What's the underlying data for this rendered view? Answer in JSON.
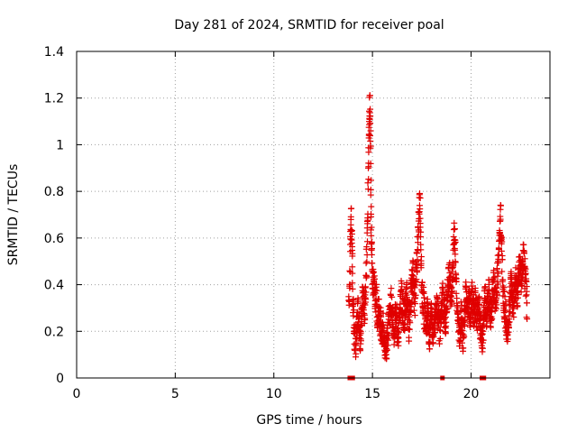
{
  "chart_data": {
    "type": "scatter",
    "title": "Day 281 of 2024, SRMTID for receiver poal",
    "xlabel": "GPS time / hours",
    "ylabel": "SRMTID / TECUs",
    "xlim": [
      0,
      24
    ],
    "ylim": [
      0,
      1.4
    ],
    "xticks": [
      0,
      5,
      10,
      15,
      20
    ],
    "xtick_labels": [
      "0",
      "5",
      "10",
      "15",
      "20"
    ],
    "yticks": [
      0,
      0.2,
      0.4,
      0.6,
      0.8,
      1.0,
      1.2,
      1.4
    ],
    "ytick_labels": [
      "0",
      "0.2",
      "0.4",
      "0.6",
      "0.8",
      "1",
      "1.2",
      "1.4"
    ],
    "grid": true,
    "marker": "plus",
    "color": "#e00000",
    "series": [
      {
        "name": "SRMTID",
        "trace": [
          [
            13.8,
            0.27
          ],
          [
            13.85,
            0.45
          ],
          [
            13.9,
            0.6
          ],
          [
            13.93,
            0.7
          ],
          [
            13.97,
            0.55
          ],
          [
            14.0,
            0.35
          ],
          [
            14.05,
            0.25
          ],
          [
            14.1,
            0.18
          ],
          [
            14.15,
            0.14
          ],
          [
            14.2,
            0.2
          ],
          [
            14.25,
            0.3
          ],
          [
            14.3,
            0.26
          ],
          [
            14.35,
            0.2
          ],
          [
            14.4,
            0.16
          ],
          [
            14.45,
            0.28
          ],
          [
            14.5,
            0.38
          ],
          [
            14.55,
            0.32
          ],
          [
            14.6,
            0.27
          ],
          [
            14.65,
            0.4
          ],
          [
            14.7,
            0.5
          ],
          [
            14.75,
            0.7
          ],
          [
            14.8,
            0.88
          ],
          [
            14.83,
            1.05
          ],
          [
            14.86,
            1.21
          ],
          [
            14.9,
            1.0
          ],
          [
            14.93,
            0.7
          ],
          [
            14.96,
            0.55
          ],
          [
            15.0,
            0.45
          ],
          [
            15.05,
            0.38
          ],
          [
            15.1,
            0.42
          ],
          [
            15.15,
            0.3
          ],
          [
            15.2,
            0.35
          ],
          [
            15.25,
            0.25
          ],
          [
            15.3,
            0.3
          ],
          [
            15.35,
            0.22
          ],
          [
            15.4,
            0.26
          ],
          [
            15.45,
            0.2
          ],
          [
            15.5,
            0.17
          ],
          [
            15.55,
            0.22
          ],
          [
            15.6,
            0.15
          ],
          [
            15.65,
            0.12
          ],
          [
            15.7,
            0.1
          ],
          [
            15.75,
            0.16
          ],
          [
            15.8,
            0.22
          ],
          [
            15.85,
            0.3
          ],
          [
            15.9,
            0.26
          ],
          [
            15.95,
            0.34
          ],
          [
            16.0,
            0.28
          ],
          [
            16.05,
            0.22
          ],
          [
            16.1,
            0.2
          ],
          [
            16.15,
            0.26
          ],
          [
            16.2,
            0.3
          ],
          [
            16.25,
            0.22
          ],
          [
            16.3,
            0.18
          ],
          [
            16.35,
            0.24
          ],
          [
            16.4,
            0.3
          ],
          [
            16.45,
            0.36
          ],
          [
            16.5,
            0.33
          ],
          [
            16.55,
            0.27
          ],
          [
            16.6,
            0.25
          ],
          [
            16.65,
            0.3
          ],
          [
            16.7,
            0.36
          ],
          [
            16.75,
            0.32
          ],
          [
            16.8,
            0.28
          ],
          [
            16.85,
            0.22
          ],
          [
            16.9,
            0.28
          ],
          [
            16.95,
            0.35
          ],
          [
            17.0,
            0.4
          ],
          [
            17.05,
            0.45
          ],
          [
            17.1,
            0.38
          ],
          [
            17.15,
            0.32
          ],
          [
            17.2,
            0.42
          ],
          [
            17.25,
            0.5
          ],
          [
            17.3,
            0.58
          ],
          [
            17.35,
            0.68
          ],
          [
            17.4,
            0.8
          ],
          [
            17.45,
            0.6
          ],
          [
            17.5,
            0.42
          ],
          [
            17.55,
            0.35
          ],
          [
            17.6,
            0.3
          ],
          [
            17.65,
            0.26
          ],
          [
            17.7,
            0.2
          ],
          [
            17.75,
            0.24
          ],
          [
            17.8,
            0.3
          ],
          [
            17.85,
            0.22
          ],
          [
            17.9,
            0.18
          ],
          [
            17.95,
            0.26
          ],
          [
            18.0,
            0.28
          ],
          [
            18.05,
            0.2
          ],
          [
            18.1,
            0.16
          ],
          [
            18.15,
            0.22
          ],
          [
            18.2,
            0.26
          ],
          [
            18.25,
            0.32
          ],
          [
            18.3,
            0.3
          ],
          [
            18.35,
            0.25
          ],
          [
            18.4,
            0.2
          ],
          [
            18.45,
            0.24
          ],
          [
            18.5,
            0.28
          ],
          [
            18.55,
            0.34
          ],
          [
            18.6,
            0.32
          ],
          [
            18.65,
            0.28
          ],
          [
            18.7,
            0.24
          ],
          [
            18.75,
            0.3
          ],
          [
            18.8,
            0.36
          ],
          [
            18.85,
            0.42
          ],
          [
            18.9,
            0.45
          ],
          [
            18.95,
            0.38
          ],
          [
            19.0,
            0.35
          ],
          [
            19.05,
            0.42
          ],
          [
            19.1,
            0.5
          ],
          [
            19.15,
            0.62
          ],
          [
            19.2,
            0.55
          ],
          [
            19.25,
            0.4
          ],
          [
            19.3,
            0.3
          ],
          [
            19.35,
            0.22
          ],
          [
            19.4,
            0.16
          ],
          [
            19.45,
            0.2
          ],
          [
            19.5,
            0.26
          ],
          [
            19.55,
            0.22
          ],
          [
            19.6,
            0.18
          ],
          [
            19.65,
            0.25
          ],
          [
            19.7,
            0.3
          ],
          [
            19.75,
            0.38
          ],
          [
            19.8,
            0.34
          ],
          [
            19.85,
            0.3
          ],
          [
            19.9,
            0.32
          ],
          [
            19.95,
            0.28
          ],
          [
            20.0,
            0.3
          ],
          [
            20.05,
            0.34
          ],
          [
            20.1,
            0.3
          ],
          [
            20.15,
            0.27
          ],
          [
            20.2,
            0.32
          ],
          [
            20.25,
            0.3
          ],
          [
            20.3,
            0.26
          ],
          [
            20.35,
            0.28
          ],
          [
            20.4,
            0.3
          ],
          [
            20.45,
            0.25
          ],
          [
            20.5,
            0.2
          ],
          [
            20.55,
            0.15
          ],
          [
            20.6,
            0.2
          ],
          [
            20.65,
            0.26
          ],
          [
            20.7,
            0.34
          ],
          [
            20.75,
            0.3
          ],
          [
            20.8,
            0.26
          ],
          [
            20.85,
            0.32
          ],
          [
            20.9,
            0.38
          ],
          [
            20.95,
            0.3
          ],
          [
            21.0,
            0.26
          ],
          [
            21.05,
            0.3
          ],
          [
            21.1,
            0.36
          ],
          [
            21.15,
            0.4
          ],
          [
            21.2,
            0.36
          ],
          [
            21.25,
            0.32
          ],
          [
            21.3,
            0.38
          ],
          [
            21.35,
            0.44
          ],
          [
            21.4,
            0.52
          ],
          [
            21.45,
            0.62
          ],
          [
            21.5,
            0.7
          ],
          [
            21.55,
            0.58
          ],
          [
            21.6,
            0.42
          ],
          [
            21.65,
            0.35
          ],
          [
            21.7,
            0.3
          ],
          [
            21.75,
            0.26
          ],
          [
            21.8,
            0.22
          ],
          [
            21.85,
            0.18
          ],
          [
            21.9,
            0.22
          ],
          [
            21.95,
            0.3
          ],
          [
            22.0,
            0.36
          ],
          [
            22.05,
            0.4
          ],
          [
            22.1,
            0.34
          ],
          [
            22.15,
            0.3
          ],
          [
            22.2,
            0.36
          ],
          [
            22.25,
            0.42
          ],
          [
            22.3,
            0.38
          ],
          [
            22.35,
            0.34
          ],
          [
            22.4,
            0.42
          ],
          [
            22.45,
            0.48
          ],
          [
            22.5,
            0.44
          ],
          [
            22.55,
            0.4
          ],
          [
            22.6,
            0.46
          ],
          [
            22.65,
            0.52
          ],
          [
            22.7,
            0.48
          ],
          [
            22.75,
            0.42
          ],
          [
            22.8,
            0.36
          ],
          [
            22.85,
            0.3
          ]
        ],
        "zero_values": [
          13.85,
          14.0,
          18.55,
          20.55,
          20.65
        ]
      }
    ]
  }
}
